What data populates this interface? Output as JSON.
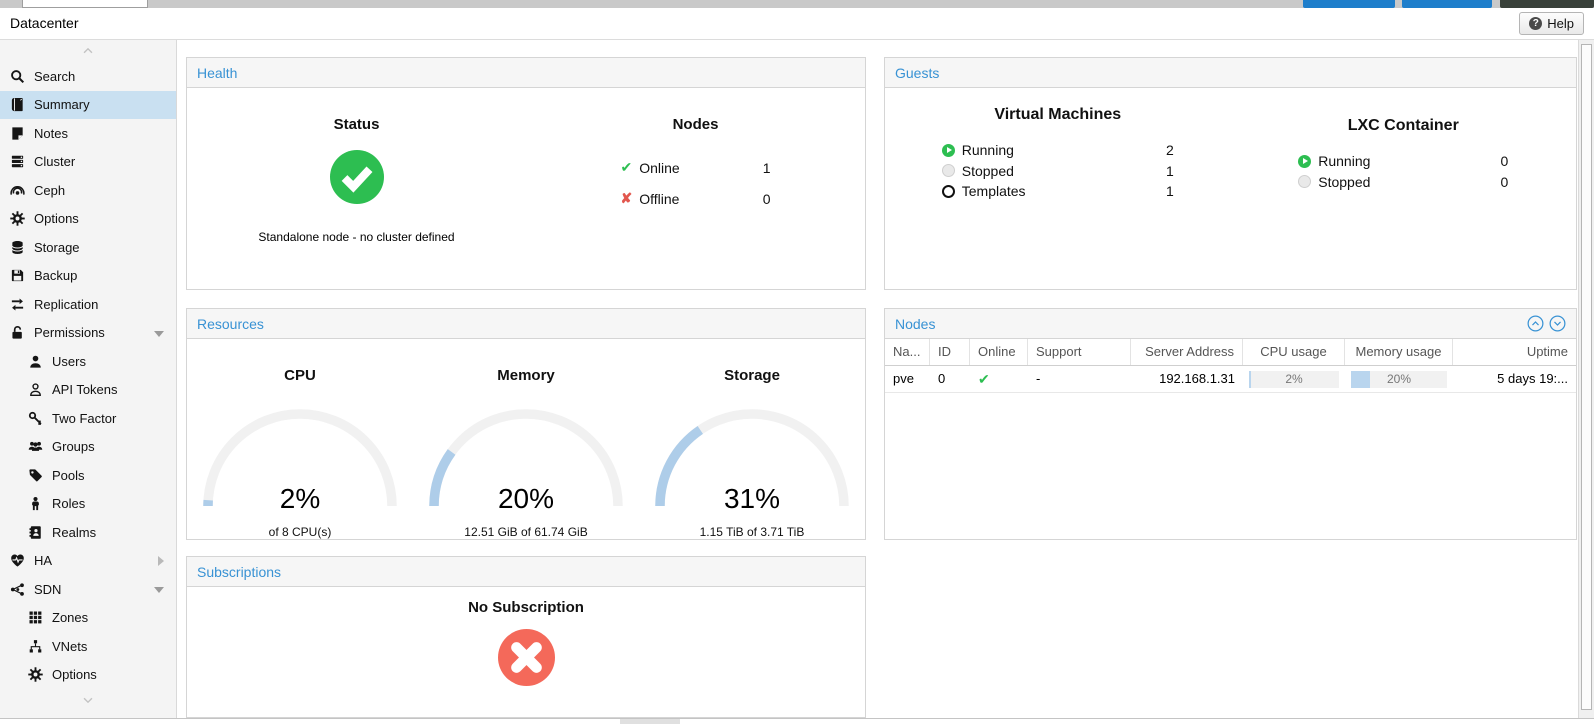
{
  "topbar": {
    "help_label": "Help"
  },
  "header": {
    "title": "Datacenter"
  },
  "sidebar": {
    "items": [
      {
        "label": "Search"
      },
      {
        "label": "Summary"
      },
      {
        "label": "Notes"
      },
      {
        "label": "Cluster"
      },
      {
        "label": "Ceph"
      },
      {
        "label": "Options"
      },
      {
        "label": "Storage"
      },
      {
        "label": "Backup"
      },
      {
        "label": "Replication"
      },
      {
        "label": "Permissions"
      },
      {
        "label": "Users"
      },
      {
        "label": "API Tokens"
      },
      {
        "label": "Two Factor"
      },
      {
        "label": "Groups"
      },
      {
        "label": "Pools"
      },
      {
        "label": "Roles"
      },
      {
        "label": "Realms"
      },
      {
        "label": "HA"
      },
      {
        "label": "SDN"
      },
      {
        "label": "Zones"
      },
      {
        "label": "VNets"
      },
      {
        "label": "Options"
      }
    ]
  },
  "panels": {
    "health": {
      "title": "Health",
      "status_heading": "Status",
      "status_note": "Standalone node - no cluster defined",
      "nodes_heading": "Nodes",
      "rows": [
        {
          "label": "Online",
          "value": "1"
        },
        {
          "label": "Offline",
          "value": "0"
        }
      ]
    },
    "guests": {
      "title": "Guests",
      "vm_heading": "Virtual Machines",
      "lxc_heading": "LXC Container",
      "vm_rows": [
        {
          "label": "Running",
          "value": "2"
        },
        {
          "label": "Stopped",
          "value": "1"
        },
        {
          "label": "Templates",
          "value": "1"
        }
      ],
      "lxc_rows": [
        {
          "label": "Running",
          "value": "0"
        },
        {
          "label": "Stopped",
          "value": "0"
        }
      ]
    },
    "resources": {
      "title": "Resources",
      "gauges": [
        {
          "heading": "CPU",
          "percent": 2,
          "display": "2%",
          "caption": "of 8 CPU(s)"
        },
        {
          "heading": "Memory",
          "percent": 20,
          "display": "20%",
          "caption": "12.51 GiB of 61.74 GiB"
        },
        {
          "heading": "Storage",
          "percent": 31,
          "display": "31%",
          "caption": "1.15 TiB of 3.71 TiB"
        }
      ]
    },
    "nodes": {
      "title": "Nodes",
      "columns": [
        "Na...",
        "ID",
        "Online",
        "Support",
        "Server Address",
        "CPU usage",
        "Memory usage",
        "Uptime"
      ],
      "row": {
        "name": "pve",
        "id": "0",
        "support": "-",
        "address": "192.168.1.31",
        "cpu_percent": 2,
        "cpu_label": "2%",
        "mem_percent": 20,
        "mem_label": "20%",
        "uptime": "5 days 19:..."
      }
    },
    "subscriptions": {
      "title": "Subscriptions",
      "heading": "No Subscription"
    }
  },
  "colors": {
    "accent_blue": "#3892d4",
    "green": "#2dbe51",
    "red": "#e2574e",
    "salmon": "#f4695a",
    "progress_blue": "#b9d5ee",
    "selected_item": "#c9e0f1"
  }
}
